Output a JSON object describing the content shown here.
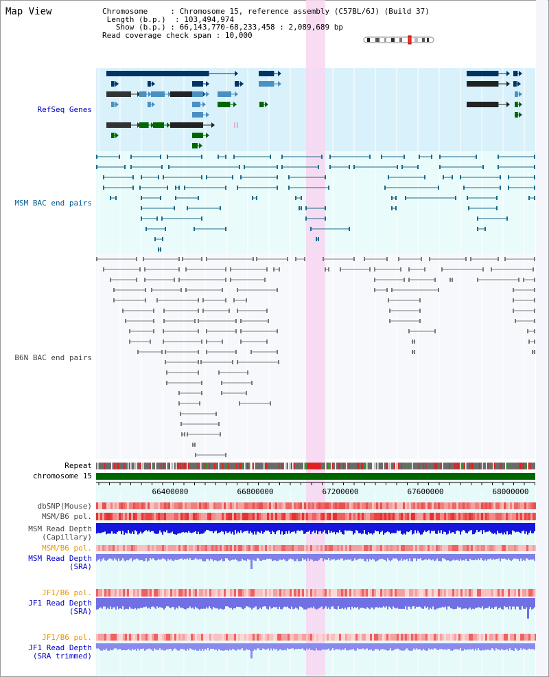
{
  "view_title": "Map View",
  "info": {
    "chromosome_label": "Chromosome",
    "chromosome_value": "Chromosome 15, reference assembly (C57BL/6J) (Build 37)",
    "length_label": "Length (b.p.)",
    "length_value": "103,494,974",
    "show_label": "Show (b.p.)",
    "show_value": "66,143,770-68,233,458 : 2,089,689 bp",
    "coverage_label": "Read coverage check span",
    "coverage_value": "10,000"
  },
  "tracks": {
    "refseq": "RefSeq Genes",
    "msm_bac": "MSM BAC end pairs",
    "b6n_bac": "B6N BAC end pairs",
    "repeat": "Repeat",
    "chromosome": "chromosome 15",
    "dbsnp": "dbSNP(Mouse)",
    "msm_b6_pol": "MSM/B6 pol.",
    "msm_depth_cap_1": "MSM Read Depth",
    "msm_depth_cap_2": "(Capillary)",
    "msm_b6_pol_2": "MSM/B6 pol.",
    "msm_depth_sra_1": "MSM Read Depth",
    "msm_depth_sra_2": "(SRA)",
    "jf1_b6_pol": "JF1/B6 pol.",
    "jf1_depth_sra_1": "JF1 Read Depth",
    "jf1_depth_sra_2": "(SRA)",
    "jf1_b6_pol_2": "JF1/B6 pol.",
    "jf1_depth_trim_1": "JF1 Read Depth",
    "jf1_depth_trim_2": "(SRA trimmed)"
  },
  "axis": {
    "ticks": [
      "66400000",
      "66800000",
      "67200000",
      "67600000",
      "68000000"
    ]
  },
  "colors": {
    "refseq_bg": "#d9f1fb",
    "bac_bg": "#e9fbfb",
    "b6n_bg": "#f6f8fb",
    "highlight": "#f8d6f0",
    "gene_dark": "#003366",
    "gene_mid": "#4a90c0",
    "gene_green": "#006600",
    "chromosome_bar": "#006600",
    "msm_line": "#1a6a8a",
    "b6n_line": "#777777",
    "depth_blue": "#1010dd",
    "depth_light": "#7070ee"
  }
}
